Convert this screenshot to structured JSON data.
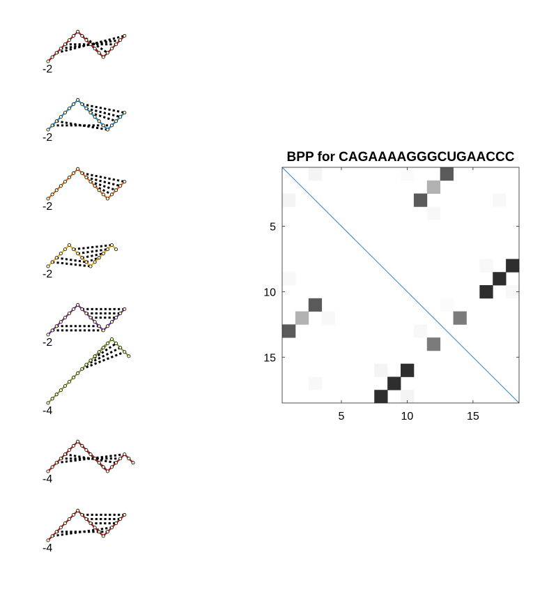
{
  "structures": [
    {
      "energy_label": "-2",
      "color": "#b2182b",
      "path": [
        [
          0,
          0
        ],
        [
          1,
          1
        ],
        [
          2,
          2
        ],
        [
          3,
          3
        ],
        [
          4,
          4
        ],
        [
          5,
          5
        ],
        [
          6,
          6
        ],
        [
          7,
          7
        ],
        [
          8,
          6
        ],
        [
          9,
          5
        ],
        [
          10,
          4
        ],
        [
          11,
          3
        ],
        [
          12,
          2
        ],
        [
          13,
          1
        ],
        [
          14,
          2
        ],
        [
          15,
          3
        ],
        [
          16,
          4
        ],
        [
          17,
          5
        ],
        [
          18,
          6
        ]
      ],
      "pairs": [
        [
          2,
          18
        ],
        [
          3,
          17
        ],
        [
          4,
          16
        ],
        [
          8,
          14
        ],
        [
          9,
          13
        ]
      ]
    },
    {
      "energy_label": "-2",
      "color": "#1f8fd6",
      "path": [
        [
          0,
          0
        ],
        [
          1,
          1
        ],
        [
          2,
          2
        ],
        [
          3,
          3
        ],
        [
          4,
          4
        ],
        [
          5,
          5
        ],
        [
          6,
          6
        ],
        [
          7,
          7
        ],
        [
          8,
          6
        ],
        [
          9,
          5
        ],
        [
          10,
          4
        ],
        [
          11,
          3
        ],
        [
          12,
          2
        ],
        [
          13,
          1
        ],
        [
          14,
          0
        ],
        [
          15,
          1
        ],
        [
          16,
          2
        ],
        [
          17,
          3
        ],
        [
          18,
          4
        ]
      ],
      "pairs": [
        [
          1,
          15
        ],
        [
          2,
          14
        ],
        [
          8,
          18
        ],
        [
          9,
          17
        ],
        [
          10,
          16
        ]
      ]
    },
    {
      "energy_label": "-2",
      "color": "#e8641b",
      "path": [
        [
          0,
          0
        ],
        [
          1,
          1
        ],
        [
          2,
          2
        ],
        [
          3,
          3
        ],
        [
          4,
          4
        ],
        [
          5,
          5
        ],
        [
          6,
          6
        ],
        [
          7,
          7
        ],
        [
          8,
          6
        ],
        [
          9,
          5
        ],
        [
          10,
          4
        ],
        [
          11,
          3
        ],
        [
          12,
          2
        ],
        [
          13,
          1
        ],
        [
          14,
          0
        ],
        [
          15,
          1
        ],
        [
          16,
          2
        ],
        [
          17,
          3
        ],
        [
          18,
          4
        ]
      ],
      "pairs": [
        [
          8,
          18
        ],
        [
          9,
          17
        ],
        [
          10,
          16
        ],
        [
          11,
          15
        ]
      ]
    },
    {
      "energy_label": "-2",
      "color": "#f2b01e",
      "path": [
        [
          0,
          0
        ],
        [
          1,
          1
        ],
        [
          2,
          2
        ],
        [
          3,
          3
        ],
        [
          4,
          4
        ],
        [
          5,
          5
        ],
        [
          6,
          4
        ],
        [
          7,
          3
        ],
        [
          8,
          2
        ],
        [
          9,
          1
        ],
        [
          10,
          0
        ],
        [
          11,
          1
        ],
        [
          12,
          2
        ],
        [
          13,
          3
        ],
        [
          14,
          4
        ],
        [
          15,
          5
        ],
        [
          16,
          4
        ]
      ],
      "pairs": [
        [
          1,
          10
        ],
        [
          2,
          9
        ],
        [
          6,
          15
        ],
        [
          7,
          14
        ],
        [
          8,
          13
        ],
        [
          9,
          12
        ]
      ]
    },
    {
      "energy_label": "-2",
      "color": "#7a2fa0",
      "path": [
        [
          0,
          0
        ],
        [
          1,
          1
        ],
        [
          2,
          2
        ],
        [
          3,
          3
        ],
        [
          4,
          4
        ],
        [
          5,
          5
        ],
        [
          6,
          6
        ],
        [
          7,
          7
        ],
        [
          8,
          6
        ],
        [
          9,
          5
        ],
        [
          10,
          4
        ],
        [
          11,
          3
        ],
        [
          12,
          2
        ],
        [
          13,
          1
        ],
        [
          14,
          2
        ],
        [
          15,
          3
        ],
        [
          16,
          4
        ],
        [
          17,
          5
        ],
        [
          18,
          6
        ]
      ],
      "pairs": [
        [
          1,
          13
        ],
        [
          2,
          12
        ],
        [
          8,
          18
        ],
        [
          9,
          17
        ],
        [
          10,
          16
        ]
      ]
    },
    {
      "energy_label": "-4",
      "color": "#77ac30",
      "path": [
        [
          0,
          0
        ],
        [
          1,
          1
        ],
        [
          2,
          2
        ],
        [
          3,
          3
        ],
        [
          4,
          4
        ],
        [
          5,
          5
        ],
        [
          6,
          6
        ],
        [
          7,
          7
        ],
        [
          8,
          8
        ],
        [
          9,
          9
        ],
        [
          10,
          10
        ],
        [
          11,
          11
        ],
        [
          12,
          12
        ],
        [
          13,
          13
        ],
        [
          14,
          14
        ],
        [
          15,
          15
        ],
        [
          16,
          14
        ],
        [
          17,
          13
        ],
        [
          18,
          12
        ],
        [
          19,
          11
        ]
      ],
      "pairs": [
        [
          8,
          18
        ],
        [
          9,
          17
        ],
        [
          10,
          16
        ],
        [
          11,
          15
        ]
      ]
    },
    {
      "energy_label": "-4",
      "color": "#b2182b",
      "path": [
        [
          0,
          0
        ],
        [
          1,
          1
        ],
        [
          2,
          2
        ],
        [
          3,
          3
        ],
        [
          4,
          4
        ],
        [
          5,
          5
        ],
        [
          6,
          6
        ],
        [
          7,
          7
        ],
        [
          8,
          6
        ],
        [
          9,
          5
        ],
        [
          10,
          4
        ],
        [
          11,
          3
        ],
        [
          12,
          2
        ],
        [
          13,
          1
        ],
        [
          14,
          0
        ],
        [
          15,
          1
        ],
        [
          16,
          2
        ],
        [
          17,
          3
        ],
        [
          18,
          4
        ],
        [
          19,
          3
        ],
        [
          20,
          2
        ]
      ],
      "pairs": [
        [
          2,
          18
        ],
        [
          3,
          17
        ],
        [
          4,
          16
        ],
        [
          8,
          14
        ],
        [
          9,
          13
        ]
      ]
    },
    {
      "energy_label": "-4",
      "color": "#b2182b",
      "path": [
        [
          0,
          0
        ],
        [
          1,
          1
        ],
        [
          2,
          2
        ],
        [
          3,
          3
        ],
        [
          4,
          4
        ],
        [
          5,
          5
        ],
        [
          6,
          6
        ],
        [
          7,
          7
        ],
        [
          8,
          6
        ],
        [
          9,
          5
        ],
        [
          10,
          4
        ],
        [
          11,
          3
        ],
        [
          12,
          2
        ],
        [
          13,
          1
        ],
        [
          14,
          2
        ],
        [
          15,
          3
        ],
        [
          16,
          4
        ],
        [
          17,
          5
        ],
        [
          18,
          6
        ]
      ],
      "pairs": [
        [
          1,
          15
        ],
        [
          2,
          14
        ],
        [
          8,
          18
        ],
        [
          9,
          17
        ],
        [
          10,
          16
        ]
      ]
    }
  ],
  "chart_data": {
    "type": "heatmap",
    "title": "BPP for CAGAAAAGGGCUGAACCC",
    "n": 18,
    "xlim": [
      0.5,
      18.5
    ],
    "ylim": [
      0.5,
      18.5
    ],
    "x_ticks": [
      5,
      10,
      15
    ],
    "y_ticks": [
      5,
      10,
      15
    ],
    "y_axis_reversed": true,
    "diagonal_color": "#2e86c1",
    "colormap": "gray-reversed",
    "cells": [
      [
        1,
        3,
        0.05
      ],
      [
        1,
        10,
        0.02
      ],
      [
        1,
        13,
        0.75
      ],
      [
        2,
        12,
        0.35
      ],
      [
        3,
        1,
        0.05
      ],
      [
        3,
        11,
        0.75
      ],
      [
        3,
        17,
        0.03
      ],
      [
        4,
        12,
        0.03
      ],
      [
        8,
        16,
        0.03
      ],
      [
        8,
        18,
        0.95
      ],
      [
        9,
        1,
        0.03
      ],
      [
        9,
        17,
        0.95
      ],
      [
        10,
        16,
        0.95
      ],
      [
        10,
        18,
        0.03
      ],
      [
        11,
        3,
        0.75
      ],
      [
        11,
        13,
        0.02
      ],
      [
        12,
        2,
        0.35
      ],
      [
        12,
        4,
        0.03
      ],
      [
        12,
        14,
        0.6
      ],
      [
        13,
        1,
        0.75
      ],
      [
        13,
        11,
        0.03
      ],
      [
        14,
        12,
        0.6
      ],
      [
        16,
        8,
        0.05
      ],
      [
        16,
        10,
        0.95
      ],
      [
        17,
        3,
        0.03
      ],
      [
        17,
        9,
        0.95
      ],
      [
        18,
        8,
        0.95
      ],
      [
        18,
        10,
        0.05
      ]
    ]
  }
}
